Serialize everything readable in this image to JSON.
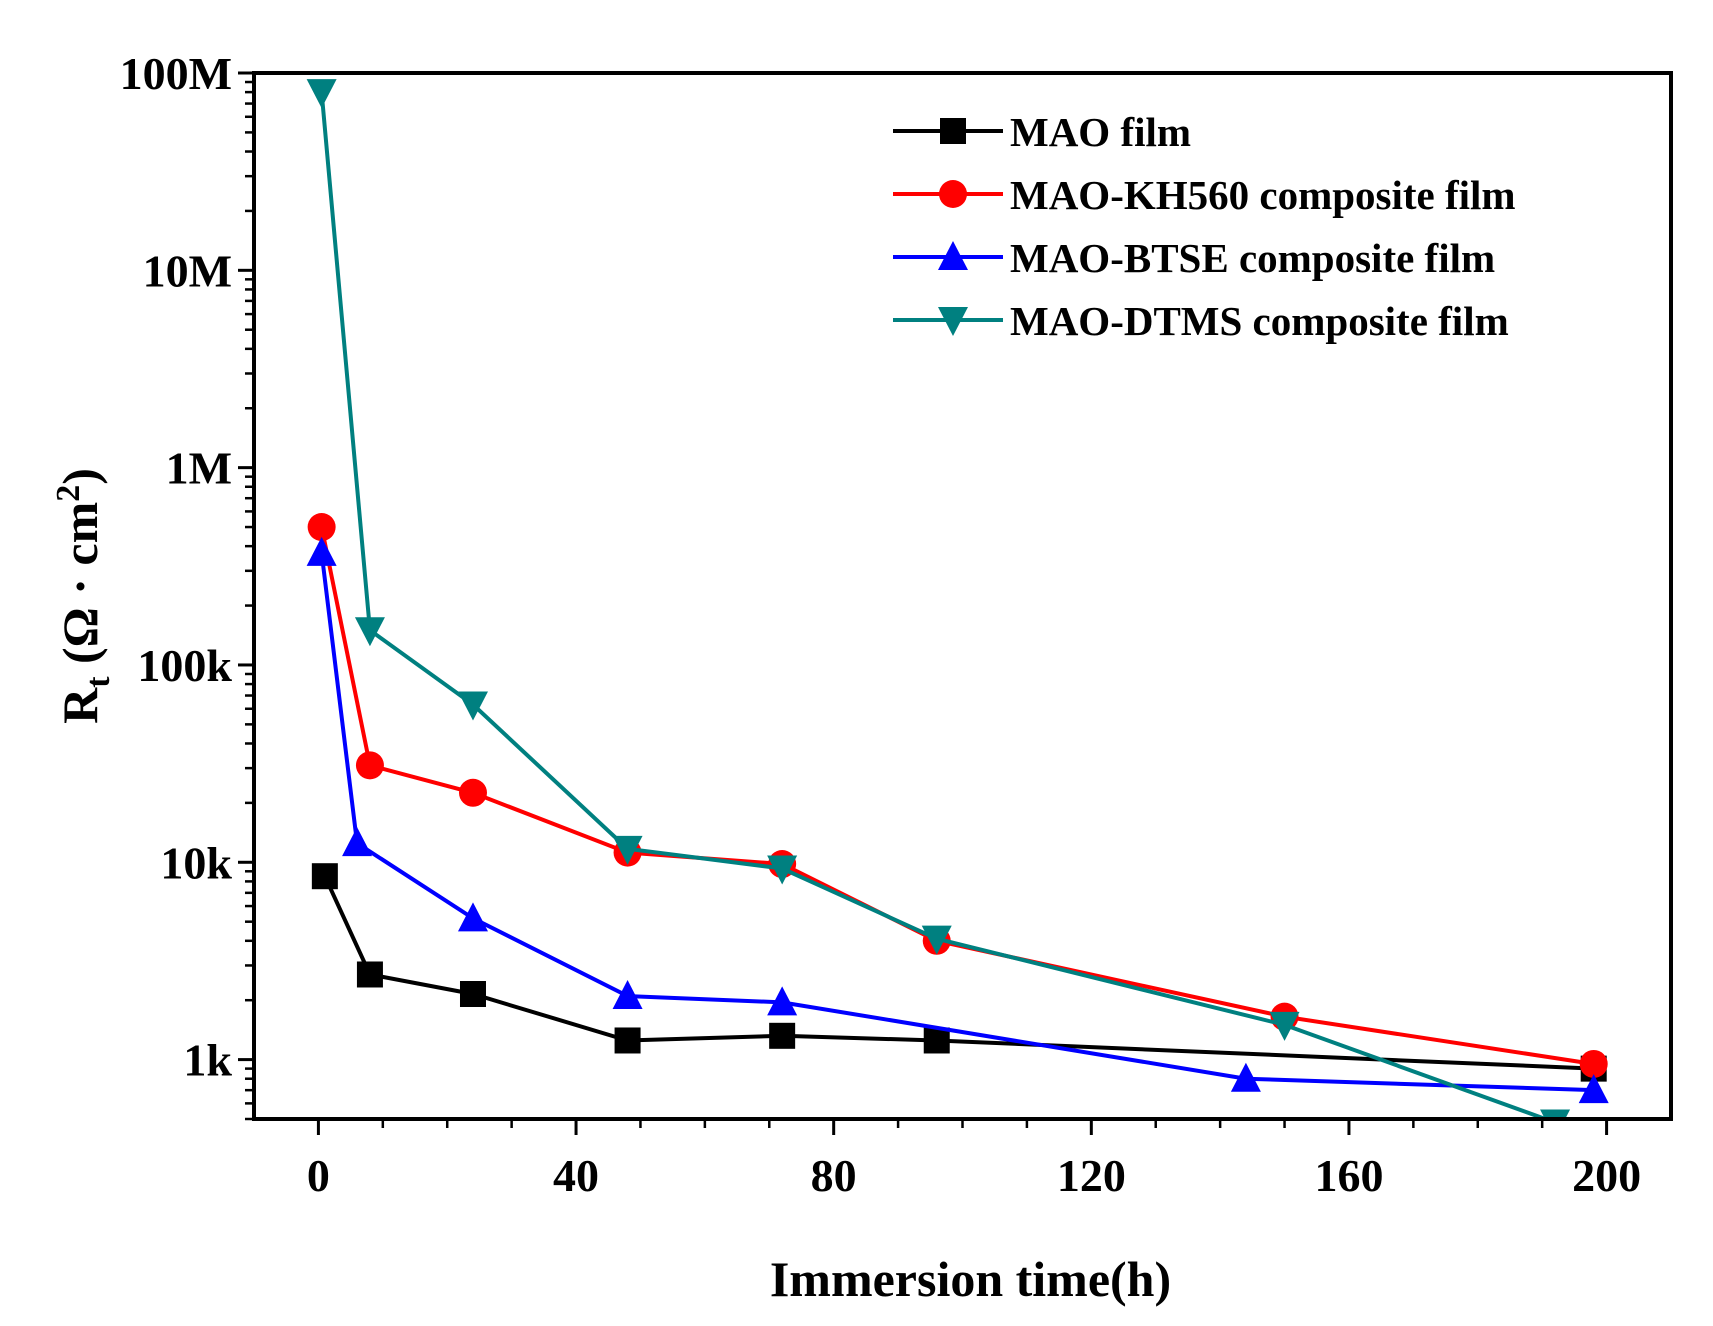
{
  "chart_data": {
    "type": "line",
    "title": "",
    "xlabel": "Immersion time(h)",
    "ylabel": {
      "main": "R",
      "subscript": "t",
      "units": "(Ω · cm",
      "superscript": "2",
      "close": ")"
    },
    "xlim": [
      -10,
      210
    ],
    "ylim": [
      500,
      100000000
    ],
    "yscale": "log",
    "x_ticks": [
      0,
      40,
      80,
      120,
      160,
      200
    ],
    "x_tick_labels": [
      "0",
      "40",
      "80",
      "120",
      "160",
      "200"
    ],
    "y_ticks": [
      1000,
      10000,
      100000,
      1000000,
      10000000,
      100000000
    ],
    "y_tick_labels": [
      "1k",
      "10k",
      "100k",
      "1M",
      "10M",
      "100M"
    ],
    "legend_position": "top-right",
    "series": [
      {
        "name": "MAO film",
        "color": "#000000",
        "marker": "square",
        "x": [
          1,
          8,
          24,
          48,
          72,
          96,
          198
        ],
        "y": [
          8500,
          2700,
          2150,
          1250,
          1320,
          1250,
          900
        ]
      },
      {
        "name": "MAO-KH560 composite film",
        "color": "#ff0000",
        "marker": "circle",
        "x": [
          0.5,
          8,
          24,
          48,
          72,
          96,
          150,
          198
        ],
        "y": [
          500000,
          31000,
          22500,
          11200,
          9800,
          4000,
          1650,
          950
        ]
      },
      {
        "name": "MAO-BTSE composite film",
        "color": "#0000ff",
        "marker": "triangle-up",
        "x": [
          0.5,
          6,
          24,
          48,
          72,
          144,
          198
        ],
        "y": [
          370000,
          12500,
          5200,
          2100,
          1950,
          800,
          700
        ]
      },
      {
        "name": "MAO-DTMS composite film",
        "color": "#008080",
        "marker": "triangle-down",
        "x": [
          0.5,
          8,
          24,
          48,
          72,
          96,
          150,
          192
        ],
        "y": [
          80000000,
          150000,
          63000,
          11700,
          9300,
          4100,
          1500,
          480
        ]
      }
    ]
  }
}
